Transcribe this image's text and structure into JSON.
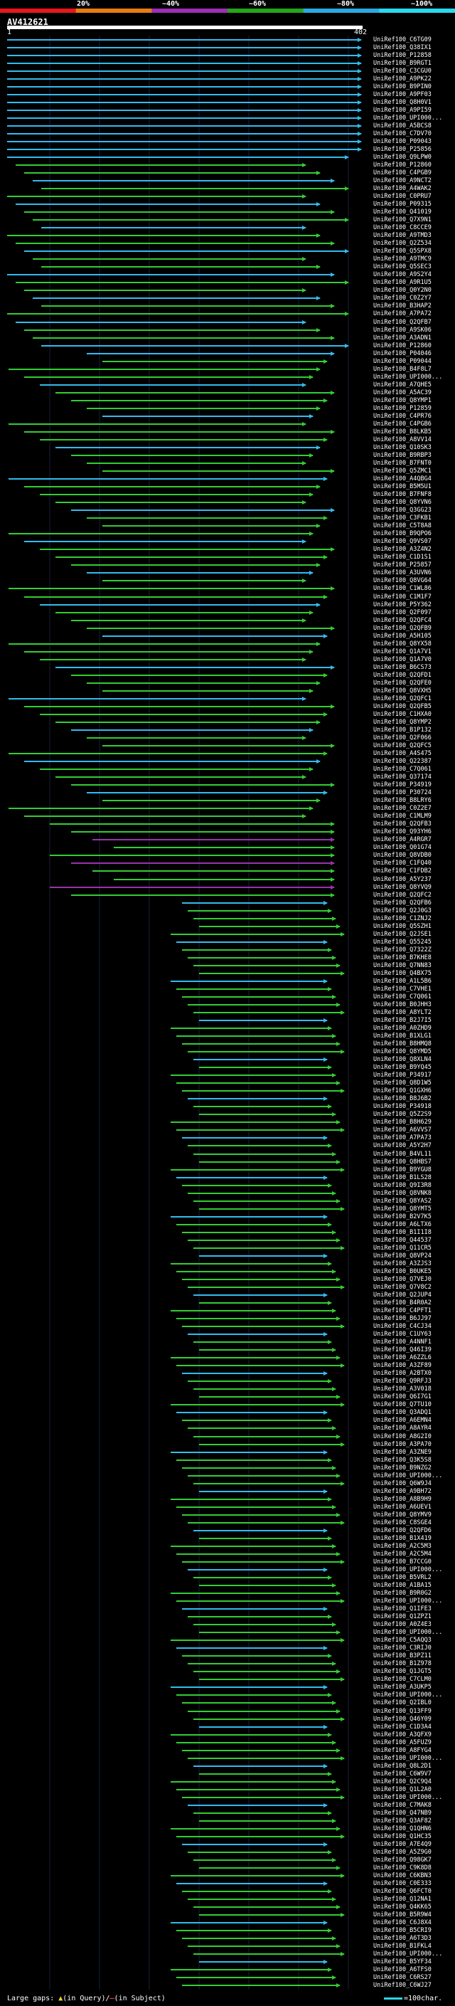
{
  "header": {
    "scale_labels": [
      "20%",
      "~40%",
      "~60%",
      "~80%",
      "~100%"
    ],
    "scale_colors": [
      "#e8161b",
      "#e87c10",
      "#9b2fb5",
      "#27a51a",
      "#2aaae3",
      "#2ad7ef"
    ],
    "query_id": "AV412621",
    "ruler_start": "1",
    "ruler_end": "402"
  },
  "footer": {
    "gaps_text": "Large gaps: ",
    "gaps_query_mark": "▲",
    "gaps_query_text": "(in Query)/",
    "gaps_subject_mark": "–",
    "gaps_subject_text": "(in Subject)",
    "scale_text": "=100char."
  },
  "colors": {
    "green": "#33cc33",
    "cyan": "#33bbee",
    "purple": "#9933aa"
  },
  "chart_data": {
    "type": "alignment-hits",
    "query_length": 402,
    "query_id": "AV412621",
    "identity_scale": [
      "20%",
      "~40%",
      "~60%",
      "~80%",
      "~100%"
    ],
    "subjects": [
      "UniRef100_C6TG09",
      "UniRef100_Q38IX1",
      "UniRef100_P12858",
      "UniRef100_B9RGT1",
      "UniRef100_C3CGU0",
      "UniRef100_A9PK22",
      "UniRef100_B9PIN0",
      "UniRef100_A9PF03",
      "UniRef100_Q8H0V1",
      "UniRef100_A9PI59",
      "UniRef100_UPI000...",
      "UniRef100_A5BCS8",
      "UniRef100_C7DV70",
      "UniRef100_P09043",
      "UniRef100_P25856",
      "UniRef100_Q9LPW0",
      "UniRef100_P12860",
      "UniRef100_C4PGB9",
      "UniRef100_A9NCT2",
      "UniRef100_A4WAK2",
      "UniRef100_C0PRU7",
      "UniRef100_P09315",
      "UniRef100_Q41019",
      "UniRef100_Q7X9N1",
      "UniRef100_C8CCE9",
      "UniRef100_A9TMD3",
      "UniRef100_Q2Z534",
      "UniRef100_Q5SPX8",
      "UniRef100_A9TMC9",
      "UniRef100_Q5SEC3",
      "UniRef100_A9S2Y4",
      "UniRef100_A9R1U5",
      "UniRef100_Q0Y2N0",
      "UniRef100_C0Z2Y7",
      "UniRef100_B3HAP2",
      "UniRef100_A7PA72",
      "UniRef100_Q2QFB7",
      "UniRef100_A9SK06",
      "UniRef100_A3ADN1",
      "UniRef100_P12860",
      "UniRef100_P04046",
      "UniRef100_P09044",
      "UniRef100_B4F8L7",
      "UniRef100_UPI000...",
      "UniRef100_A7QHE5",
      "UniRef100_A5AC39",
      "UniRef100_Q8YMP1",
      "UniRef100_P12859",
      "UniRef100_C4PR76",
      "UniRef100_C4PGB6",
      "UniRef100_B8LKB5",
      "UniRef100_A8VV14",
      "UniRef100_Q10SK3",
      "UniRef100_B9RBP3",
      "UniRef100_B7FNT0",
      "UniRef100_Q5ZMC1",
      "UniRef100_A4QBG4",
      "UniRef100_B5M5U1",
      "UniRef100_B7FNF8",
      "UniRef100_Q8YVN6",
      "UniRef100_Q3GG23",
      "UniRef100_C3FKB1",
      "UniRef100_C5T8A8",
      "UniRef100_B9QPO6",
      "UniRef100_Q9VS07",
      "UniRef100_A3Z4N2",
      "UniRef100_C1D1S1",
      "UniRef100_P25857",
      "UniRef100_A3UVN6",
      "UniRef100_Q8VG64",
      "UniRef100_C1WL86",
      "UniRef100_C1M1F7",
      "UniRef100_P5Y362",
      "UniRef100_Q2F097",
      "UniRef100_Q2QFC4",
      "UniRef100_Q2QFB9",
      "UniRef100_A5H105",
      "UniRef100_Q8YX58",
      "UniRef100_Q1A7V1",
      "UniRef100_Q1A7V0",
      "UniRef100_B6CS73",
      "UniRef100_Q2QFD1",
      "UniRef100_Q2QFE0",
      "UniRef100_Q8VXH5",
      "UniRef100_Q2QFC1",
      "UniRef100_Q2QFB5",
      "UniRef100_C1HXA0",
      "UniRef100_Q8YMP2",
      "UniRef100_B1P132",
      "UniRef100_Q2F066",
      "UniRef100_Q2QFC5",
      "UniRef100_A4S475",
      "UniRef100_Q22387",
      "UniRef100_C7Q061",
      "UniRef100_Q37174",
      "UniRef100_P34919",
      "UniRef100_P30724",
      "UniRef100_B8LRY6",
      "UniRef100_C0Z2E7",
      "UniRef100_C1MLM9",
      "UniRef100_Q2QFB3",
      "UniRef100_Q93YH6",
      "UniRef100_A4RGR7",
      "UniRef100_Q01G74",
      "UniRef100_Q8VDB0",
      "UniRef100_C1FQ40",
      "UniRef100_C1FDB2",
      "UniRef100_A5Y237",
      "UniRef100_Q8YVQ9",
      "UniRef100_Q2QFC2",
      "UniRef100_Q2QFB6",
      "UniRef100_Q2J0G3",
      "UniRef100_C1ZNJ2",
      "UniRef100_Q5SZH1",
      "UniRef100_Q2JSE1",
      "UniRef100_Q55245",
      "UniRef100_Q7322Z",
      "UniRef100_B7KHE8",
      "UniRef100_Q7NN83",
      "UniRef100_Q4BX75",
      "UniRef100_A1L5B6",
      "UniRef100_C7VHE1",
      "UniRef100_C7Q061",
      "UniRef100_B0JHH3",
      "UniRef100_A8YLT2",
      "UniRef100_B2J7I5",
      "UniRef100_A0ZHD9",
      "UniRef100_B1XLG1",
      "UniRef100_B8HMQ8",
      "UniRef100_Q8YMD5",
      "UniRef100_Q8XLN4",
      "UniRef100_B9YQ45",
      "UniRef100_P34917",
      "UniRef100_Q8D1W5",
      "UniRef100_Q1GXH6",
      "UniRef100_B8J6B2",
      "UniRef100_P34918",
      "UniRef100_Q5Z2S9",
      "UniRef100_B8H629",
      "UniRef100_A6VVS7",
      "UniRef100_A7PA73",
      "UniRef100_A5Y2H7",
      "UniRef100_B4VL11",
      "UniRef100_Q8HBS7",
      "UniRef100_B9YGU8",
      "UniRef100_B1LS28",
      "UniRef100_Q9I3R8",
      "UniRef100_Q8VNK8",
      "UniRef100_Q8YAS2",
      "UniRef100_Q8YMT5",
      "UniRef100_B2V7K5",
      "UniRef100_A6LTX6",
      "UniRef100_B1I1I8",
      "UniRef100_Q44537",
      "UniRef100_Q11CR5",
      "UniRef100_Q8VP24",
      "UniRef100_A3ZJS3",
      "UniRef100_B0UKE5",
      "UniRef100_Q7VEJ0",
      "UniRef100_Q7V8C2",
      "UniRef100_Q2JUP4",
      "UniRef100_B4R0A2",
      "UniRef100_C4PFT1",
      "UniRef100_B6JJ97",
      "UniRef100_C4CJ34",
      "UniRef100_C1UY63",
      "UniRef100_A4NNF1",
      "UniRef100_Q46I39",
      "UniRef100_A6ZZL6",
      "UniRef100_A3ZF89",
      "UniRef100_A2BTX0",
      "UniRef100_Q9RFJ3",
      "UniRef100_A3V018",
      "UniRef100_Q6I7G1",
      "UniRef100_Q7TU10",
      "UniRef100_Q3ADQ1",
      "UniRef100_A6EMN4",
      "UniRef100_A8AYR4",
      "UniRef100_A8G2I0",
      "UniRef100_A3PA70",
      "UniRef100_A3ZNE9",
      "UniRef100_Q3K5S8",
      "UniRef100_B9NZG2",
      "UniRef100_UPI000...",
      "UniRef100_Q6W9J4",
      "UniRef100_A9BH72",
      "UniRef100_A8B9H9",
      "UniRef100_A6UEV1",
      "UniRef100_Q8YMV9",
      "UniRef100_C8SGE4",
      "UniRef100_Q2QFD6",
      "UniRef100_B1X419",
      "UniRef100_A2C5M3",
      "UniRef100_A2C5M4",
      "UniRef100_B7CCG0",
      "UniRef100_UPI000...",
      "UniRef100_B5VRL2",
      "UniRef100_A1BA15",
      "UniRef100_B9R0G2",
      "UniRef100_UPI000...",
      "UniRef100_Q1IFE3",
      "UniRef100_Q1ZPZ1",
      "UniRef100_A0Z4E3",
      "UniRef100_UPI000...",
      "UniRef100_C5AQQ3",
      "UniRef100_C3RIJ0",
      "UniRef100_B3PZ11",
      "UniRef100_B1Z978",
      "UniRef100_Q1JGT5",
      "UniRef100_C7CLM0",
      "UniRef100_A3UKP5",
      "UniRef100_UPI000...",
      "UniRef100_Q2IBL0",
      "UniRef100_Q13FF9",
      "UniRef100_Q46Y09",
      "UniRef100_C1D3A4",
      "UniRef100_A3QFX9",
      "UniRef100_A5FUZ9",
      "UniRef100_A8FYG4",
      "UniRef100_UPI000...",
      "UniRef100_Q8L2D1",
      "UniRef100_C6W9V7",
      "UniRef100_Q2C9Q4",
      "UniRef100_Q1L2A0",
      "UniRef100_UPI000...",
      "UniRef100_C7MAK8",
      "UniRef100_Q47NB9",
      "UniRef100_Q3AF82",
      "UniRef100_Q1QHN6",
      "UniRef100_Q1HC35",
      "UniRef100_A7E4Q9",
      "UniRef100_A5Z9G0",
      "UniRef100_Q98GK7",
      "UniRef100_C9K8D8",
      "UniRef100_C6KBN3",
      "UniRef100_C0E333",
      "UniRef100_Q6FCT0",
      "UniRef100_Q12NA1",
      "UniRef100_Q4KK65",
      "UniRef100_B5R9W4",
      "UniRef100_C6J8X4",
      "UniRef100_B5CRI9",
      "UniRef100_A6T3D3",
      "UniRef100_B1FKL4",
      "UniRef100_UPI000...",
      "UniRef100_B5YF34",
      "UniRef100_A6TFS0",
      "UniRef100_C6RS27",
      "UniRef100_C6WJ27"
    ]
  }
}
